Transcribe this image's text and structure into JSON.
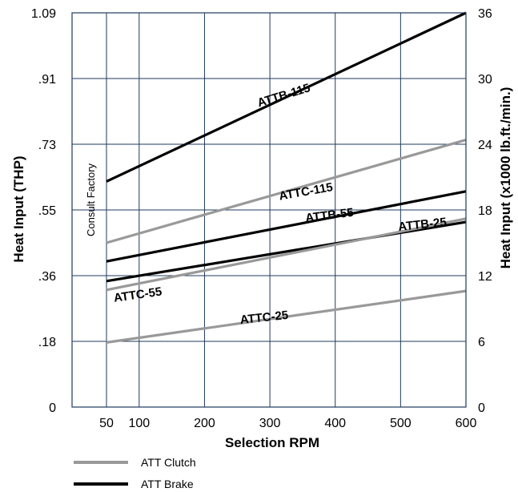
{
  "chart_data": {
    "type": "line",
    "xlabel": "Selection RPM",
    "ylabel_left": "Heat Input (THP)",
    "ylabel_right": "Heat Input (x1000 lb.ft./min.)",
    "xlim": [
      0,
      600
    ],
    "ylim_left": [
      0,
      1.09
    ],
    "ylim_right": [
      0,
      36
    ],
    "x_ticks": [
      50,
      100,
      200,
      300,
      400,
      500,
      600
    ],
    "x_gridlines": [
      50,
      100,
      200,
      300,
      400,
      500
    ],
    "y_left_ticks": [
      {
        "label": "1.09",
        "value": 36
      },
      {
        "label": ".91",
        "value": 30
      },
      {
        "label": ".73",
        "value": 24
      },
      {
        "label": ".55",
        "value": 18
      },
      {
        "label": ".36",
        "value": 12
      },
      {
        "label": ".18",
        "value": 6
      },
      {
        "label": "0",
        "value": 0
      }
    ],
    "y_right_ticks": [
      36,
      30,
      24,
      18,
      12,
      6,
      0
    ],
    "grid": true,
    "note": "Consult Factory",
    "series": [
      {
        "name": "ATTB-115",
        "group": "ATT Brake",
        "x": [
          50,
          600
        ],
        "y": [
          20.6,
          36.0
        ],
        "label_at": [
          283,
          27.4
        ],
        "label_rot": -17
      },
      {
        "name": "ATTC-115",
        "group": "ATT Clutch",
        "x": [
          50,
          600
        ],
        "y": [
          15.0,
          24.4
        ],
        "label_at": [
          315,
          18.9
        ],
        "label_rot": -10
      },
      {
        "name": "ATTB-55",
        "group": "ATT Brake",
        "x": [
          50,
          600
        ],
        "y": [
          13.3,
          19.7
        ],
        "label_at": [
          355,
          16.9
        ],
        "label_rot": -7
      },
      {
        "name": "ATTB-25",
        "group": "ATT Brake",
        "x": [
          50,
          600
        ],
        "y": [
          11.5,
          16.9
        ],
        "label_at": [
          497,
          16.1
        ],
        "label_rot": -6
      },
      {
        "name": "ATTC-55",
        "group": "ATT Clutch",
        "x": [
          50,
          600
        ],
        "y": [
          10.7,
          17.2
        ],
        "label_at": [
          62,
          9.6
        ],
        "label_rot": -8
      },
      {
        "name": "ATTC-25",
        "group": "ATT Clutch",
        "x": [
          50,
          600
        ],
        "y": [
          5.9,
          10.6
        ],
        "label_at": [
          255,
          7.6
        ],
        "label_rot": -6
      }
    ],
    "legend": [
      {
        "label": "ATT Clutch",
        "color": "#999999"
      },
      {
        "label": "ATT Brake",
        "color": "#000000"
      }
    ],
    "colors": {
      "ATT Clutch": "#999999",
      "ATT Brake": "#000000",
      "grid": "#1f3a5c"
    }
  }
}
